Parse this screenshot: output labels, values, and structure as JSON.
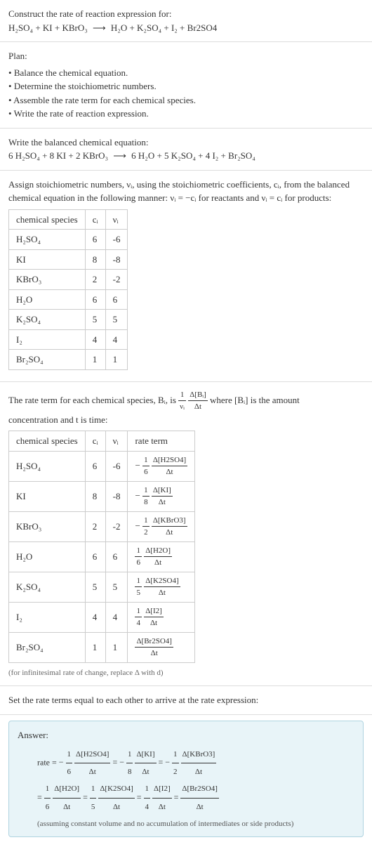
{
  "intro": {
    "line1": "Construct the rate of reaction expression for:",
    "eq_lhs": "H₂SO₄ + KI + KBrO₃",
    "eq_arrow": "⟶",
    "eq_rhs": "H₂O + K₂SO₄ + I₂ + Br2SO4"
  },
  "plan": {
    "heading": "Plan:",
    "items": [
      "Balance the chemical equation.",
      "Determine the stoichiometric numbers.",
      "Assemble the rate term for each chemical species.",
      "Write the rate of reaction expression."
    ]
  },
  "balanced": {
    "heading": "Write the balanced chemical equation:",
    "eq_lhs": "6 H₂SO₄ + 8 KI + 2 KBrO₃",
    "eq_arrow": "⟶",
    "eq_rhs": "6 H₂O + 5 K₂SO₄ + 4 I₂ + Br₂SO₄"
  },
  "stoich": {
    "para": "Assign stoichiometric numbers, νᵢ, using the stoichiometric coefficients, cᵢ, from the balanced chemical equation in the following manner: νᵢ = −cᵢ for reactants and νᵢ = cᵢ for products:",
    "headers": [
      "chemical species",
      "cᵢ",
      "νᵢ"
    ],
    "rows": [
      [
        "H₂SO₄",
        "6",
        "-6"
      ],
      [
        "KI",
        "8",
        "-8"
      ],
      [
        "KBrO₃",
        "2",
        "-2"
      ],
      [
        "H₂O",
        "6",
        "6"
      ],
      [
        "K₂SO₄",
        "5",
        "5"
      ],
      [
        "I₂",
        "4",
        "4"
      ],
      [
        "Br₂SO₄",
        "1",
        "1"
      ]
    ]
  },
  "rate_def": {
    "prefix": "The rate term for each chemical species, Bᵢ, is ",
    "frac_outer_num": "1",
    "frac_outer_den": "νᵢ",
    "frac_inner_num": "Δ[Bᵢ]",
    "frac_inner_den": "Δt",
    "suffix1": " where [Bᵢ] is the amount",
    "suffix2": "concentration and t is time:"
  },
  "rate_table": {
    "headers": [
      "chemical species",
      "cᵢ",
      "νᵢ",
      "rate term"
    ],
    "rows": [
      {
        "sp": "H₂SO₄",
        "c": "6",
        "v": "-6",
        "sign": "−",
        "coef_num": "1",
        "coef_den": "6",
        "d_num": "Δ[H2SO4]",
        "d_den": "Δt"
      },
      {
        "sp": "KI",
        "c": "8",
        "v": "-8",
        "sign": "−",
        "coef_num": "1",
        "coef_den": "8",
        "d_num": "Δ[KI]",
        "d_den": "Δt"
      },
      {
        "sp": "KBrO₃",
        "c": "2",
        "v": "-2",
        "sign": "−",
        "coef_num": "1",
        "coef_den": "2",
        "d_num": "Δ[KBrO3]",
        "d_den": "Δt"
      },
      {
        "sp": "H₂O",
        "c": "6",
        "v": "6",
        "sign": "",
        "coef_num": "1",
        "coef_den": "6",
        "d_num": "Δ[H2O]",
        "d_den": "Δt"
      },
      {
        "sp": "K₂SO₄",
        "c": "5",
        "v": "5",
        "sign": "",
        "coef_num": "1",
        "coef_den": "5",
        "d_num": "Δ[K2SO4]",
        "d_den": "Δt"
      },
      {
        "sp": "I₂",
        "c": "4",
        "v": "4",
        "sign": "",
        "coef_num": "1",
        "coef_den": "4",
        "d_num": "Δ[I2]",
        "d_den": "Δt"
      },
      {
        "sp": "Br₂SO₄",
        "c": "1",
        "v": "1",
        "sign": "",
        "coef_num": "",
        "coef_den": "",
        "d_num": "Δ[Br2SO4]",
        "d_den": "Δt"
      }
    ],
    "note": "(for infinitesimal rate of change, replace Δ with d)"
  },
  "final": {
    "heading": "Set the rate terms equal to each other to arrive at the rate expression:"
  },
  "answer": {
    "label": "Answer:",
    "prefix": "rate =",
    "terms_line1": [
      {
        "sign": "−",
        "cn": "1",
        "cd": "6",
        "dn": "Δ[H2SO4]",
        "dd": "Δt"
      },
      {
        "sign": "= −",
        "cn": "1",
        "cd": "8",
        "dn": "Δ[KI]",
        "dd": "Δt"
      },
      {
        "sign": "= −",
        "cn": "1",
        "cd": "2",
        "dn": "Δ[KBrO3]",
        "dd": "Δt"
      }
    ],
    "terms_line2": [
      {
        "sign": "=",
        "cn": "1",
        "cd": "6",
        "dn": "Δ[H2O]",
        "dd": "Δt"
      },
      {
        "sign": "=",
        "cn": "1",
        "cd": "5",
        "dn": "Δ[K2SO4]",
        "dd": "Δt"
      },
      {
        "sign": "=",
        "cn": "1",
        "cd": "4",
        "dn": "Δ[I2]",
        "dd": "Δt"
      },
      {
        "sign": "=",
        "cn": "",
        "cd": "",
        "dn": "Δ[Br2SO4]",
        "dd": "Δt"
      }
    ],
    "assume": "(assuming constant volume and no accumulation of intermediates or side products)"
  }
}
